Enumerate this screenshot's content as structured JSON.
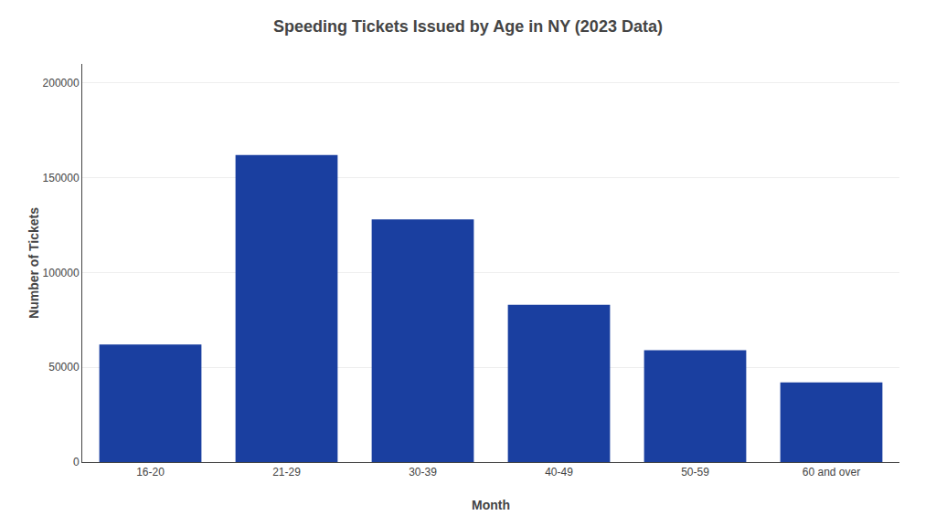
{
  "chart_data": {
    "type": "bar",
    "title": "Speeding Tickets Issued by Age in NY (2023 Data)",
    "xlabel": "Month",
    "ylabel": "Number of Tickets",
    "categories": [
      "16-20",
      "21-29",
      "30-39",
      "40-49",
      "50-59",
      "60 and over"
    ],
    "values": [
      62000,
      162000,
      128000,
      83000,
      59000,
      42000
    ],
    "color": "#1a3fa0",
    "ylim": [
      0,
      210000
    ],
    "yticks": [
      0,
      50000,
      100000,
      150000,
      200000
    ],
    "grid": true
  }
}
